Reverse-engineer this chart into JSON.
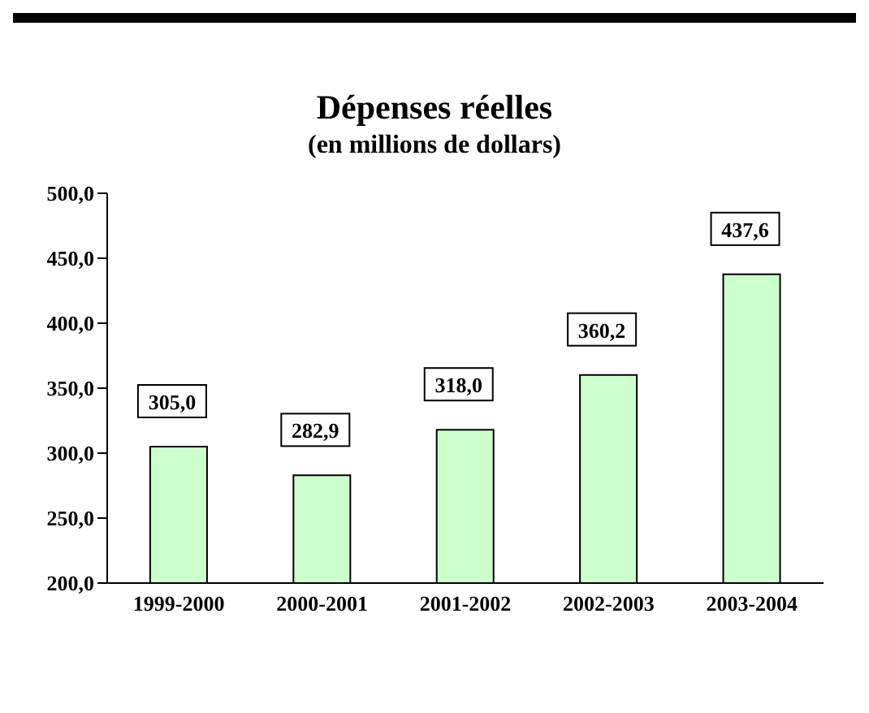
{
  "chart_data": {
    "type": "bar",
    "title": "Dépenses réelles",
    "subtitle": "(en millions de dollars)",
    "categories": [
      "1999-2000",
      "2000-2001",
      "2001-2002",
      "2002-2003",
      "2003-2004"
    ],
    "values": [
      305.0,
      282.9,
      318.0,
      360.2,
      437.6
    ],
    "value_labels": [
      "305,0",
      "282,9",
      "318,0",
      "360,2",
      "437,6"
    ],
    "color": "#ccffcc",
    "ylim": [
      200,
      500
    ],
    "yticks": [
      {
        "value": 200,
        "label": "200,0"
      },
      {
        "value": 250,
        "label": "250,0"
      },
      {
        "value": 300,
        "label": "300,0"
      },
      {
        "value": 350,
        "label": "350,0"
      },
      {
        "value": 400,
        "label": "400,0"
      },
      {
        "value": 450,
        "label": "450,0"
      },
      {
        "value": 500,
        "label": "500,0"
      }
    ],
    "grid": false,
    "legend": false
  }
}
